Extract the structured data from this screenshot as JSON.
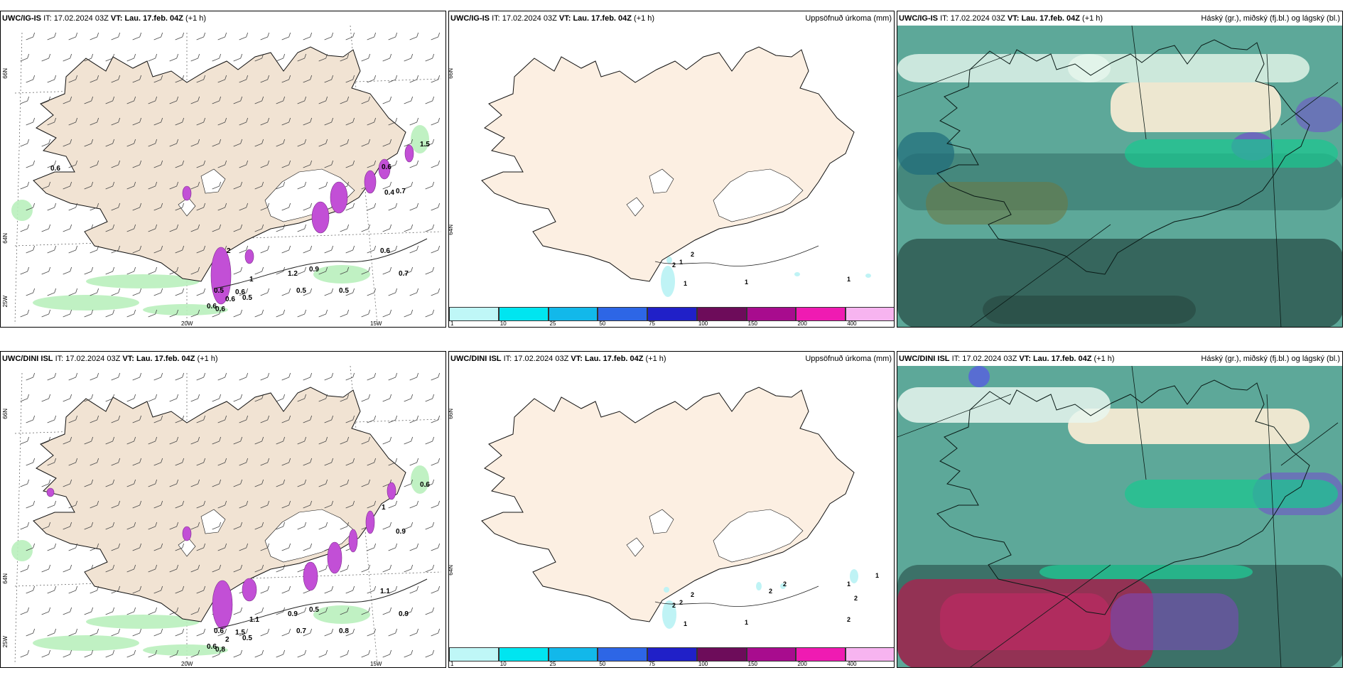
{
  "panels": [
    {
      "model": "UWC/IG-IS",
      "it_label": "IT:",
      "it_value": "17.02.2024 03Z",
      "vt_label": "VT:",
      "vt_value": "Lau. 17.feb. 04Z",
      "lead": "(+1 h)",
      "right_title": "",
      "type": "wind",
      "lat_labels": [
        "66N",
        "64N"
      ],
      "lon_labels": [
        "20W",
        "15W"
      ],
      "corner_label": "25W",
      "values": [
        "0.6",
        "0.6",
        "0.5",
        "0.7",
        "0.6",
        "0.9",
        "1.2",
        "0.5",
        "0.5",
        "0.5",
        "0.6",
        "0.6",
        "0.6",
        "0.7",
        "1",
        "1.5",
        "2",
        "0.4",
        "0.6"
      ]
    },
    {
      "model": "UWC/IG-IS",
      "it_label": "IT:",
      "it_value": "17.02.2024 03Z",
      "vt_label": "VT:",
      "vt_value": "Lau. 17.feb. 04Z",
      "lead": "(+1 h)",
      "right_title": "Uppsöfnuð úrkoma (mm)",
      "type": "precip",
      "lat_labels": [
        "66N",
        "64N"
      ],
      "lon_labels": [],
      "values": [
        "2",
        "2",
        "1",
        "1",
        "1",
        "1"
      ]
    },
    {
      "model": "UWC/IG-IS",
      "it_label": "IT:",
      "it_value": "17.02.2024 03Z",
      "vt_label": "VT:",
      "vt_value": "Lau. 17.feb. 04Z",
      "lead": "(+1 h)",
      "right_title": "Háský (gr.), miðský (fj.bl.) og lágský (bl.)",
      "type": "cloud",
      "lat_labels": [],
      "lon_labels": []
    },
    {
      "model": "UWC/DINI ISL",
      "it_label": "IT:",
      "it_value": "17.02.2024 03Z",
      "vt_label": "VT:",
      "vt_value": "Lau. 17.feb. 04Z",
      "lead": "(+1 h)",
      "right_title": "",
      "type": "wind",
      "lat_labels": [
        "66N",
        "64N"
      ],
      "lon_labels": [
        "20W",
        "15W"
      ],
      "corner_label": "25W",
      "values": [
        "0.6",
        "0.8",
        "0.5",
        "0.9",
        "1.1",
        "0.5",
        "0.9",
        "0.7",
        "0.8",
        "0.6",
        "2",
        "1.5",
        "1",
        "0.9",
        "1.1",
        "0.6"
      ]
    },
    {
      "model": "UWC/DINI ISL",
      "it_label": "IT:",
      "it_value": "17.02.2024 03Z",
      "vt_label": "VT:",
      "vt_value": "Lau. 17.feb. 04Z",
      "lead": "(+1 h)",
      "right_title": "Uppsöfnuð úrkoma (mm)",
      "type": "precip",
      "lat_labels": [
        "66N",
        "64N"
      ],
      "lon_labels": [],
      "values": [
        "2",
        "2",
        "2",
        "1",
        "1",
        "2",
        "2",
        "2",
        "1",
        "1",
        "2"
      ]
    },
    {
      "model": "UWC/DINI ISL",
      "it_label": "IT:",
      "it_value": "17.02.2024 03Z",
      "vt_label": "VT:",
      "vt_value": "Lau. 17.feb. 04Z",
      "lead": "(+1 h)",
      "right_title": "Háský (gr.), miðský (fj.bl.) og lágský (bl.)",
      "type": "cloud",
      "lat_labels": [],
      "lon_labels": []
    }
  ],
  "legend": {
    "labels": [
      "1",
      "10",
      "25",
      "50",
      "75",
      "100",
      "150",
      "200",
      "400"
    ],
    "colors": [
      "#bff7f7",
      "#00e5f0",
      "#12b8ea",
      "#2d66e6",
      "#2020c8",
      "#6d0c5a",
      "#a80c8e",
      "#ef1bb2",
      "#f7b4f0"
    ]
  },
  "colors": {
    "land": "#f1e3d3",
    "land_precip": "#fcefe2",
    "cloud_base": "#5da899",
    "coast": "#111111",
    "green_light": "#b9f0bd",
    "magenta": "#c24fd6"
  }
}
